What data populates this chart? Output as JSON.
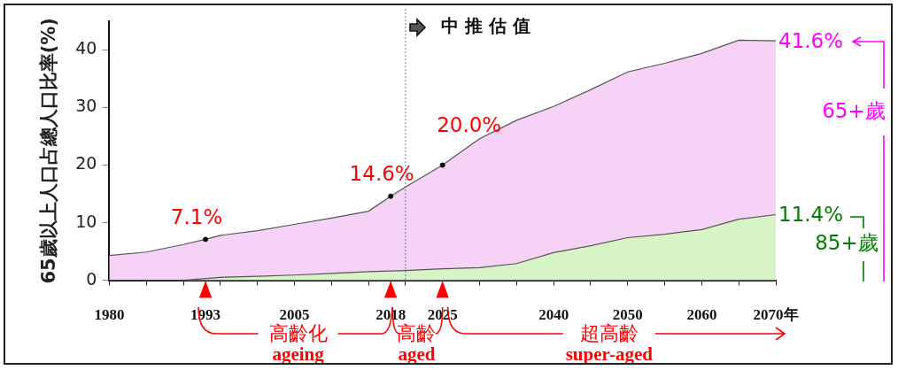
{
  "chart_data": {
    "type": "area",
    "ylabel": "65歲以上人口占總人口比率(%)",
    "xlim": [
      1980,
      2070
    ],
    "xticks": [
      1980,
      {
        "value": 1985,
        "label": null
      },
      {
        "value": 1990,
        "label": null
      },
      1993,
      {
        "value": 1995,
        "label": null
      },
      {
        "value": 2000,
        "label": null
      },
      2005,
      {
        "value": 2010,
        "label": null
      },
      {
        "value": 2015,
        "label": null
      },
      2018,
      {
        "value": 2020,
        "label": null
      },
      2025,
      {
        "value": 2030,
        "label": null
      },
      {
        "value": 2035,
        "label": null
      },
      2040,
      {
        "value": 2045,
        "label": null
      },
      2050,
      {
        "value": 2055,
        "label": null
      },
      2060,
      {
        "value": 2065,
        "label": null
      },
      {
        "value": 2070,
        "label": "2070年"
      }
    ],
    "ylim": [
      0,
      45
    ],
    "yticks": [
      0,
      10,
      20,
      30,
      40
    ],
    "grid": false,
    "legend": false,
    "series": [
      {
        "name": "65+歲",
        "color": "#f6d2f6",
        "x": [
          1980,
          1985,
          1990,
          1993,
          1995,
          2000,
          2005,
          2010,
          2015,
          2018,
          2020,
          2025,
          2030,
          2035,
          2040,
          2045,
          2050,
          2055,
          2060,
          2065,
          2070
        ],
        "values": [
          4.3,
          4.9,
          6.2,
          7.1,
          7.8,
          8.6,
          9.7,
          10.8,
          12.0,
          14.6,
          16.2,
          20.0,
          24.6,
          27.8,
          30.2,
          33.1,
          36.2,
          37.7,
          39.4,
          41.7,
          41.6
        ]
      },
      {
        "name": "85+歲",
        "color": "#d6f4c6",
        "x": [
          1990,
          1995,
          2000,
          2005,
          2010,
          2015,
          2020,
          2025,
          2030,
          2035,
          2040,
          2045,
          2050,
          2055,
          2060,
          2065,
          2070
        ],
        "values": [
          0,
          0.5,
          0.7,
          0.9,
          1.2,
          1.5,
          1.7,
          2.0,
          2.2,
          2.9,
          4.8,
          6.0,
          7.4,
          8.0,
          8.8,
          10.6,
          11.4
        ]
      },
      {
        "type": "scatter",
        "color": "#000000",
        "x": [
          1993,
          2018,
          2025
        ],
        "values": [
          7.1,
          14.6,
          20.0
        ]
      }
    ],
    "ref_lines": [
      {
        "axis": "x",
        "value": 2020,
        "label": "中推估值",
        "color": "#4a7fd4",
        "line_style": "dotted"
      }
    ],
    "annotations": [
      {
        "text": "7.1%",
        "x": 1993,
        "y": 7.1
      },
      {
        "text": "14.6%",
        "x": 2018,
        "y": 14.6
      },
      {
        "text": "20.0%",
        "x": 2025,
        "y": 20.0
      },
      {
        "text": "41.6%",
        "x": 2070,
        "y": 41.6
      },
      {
        "text": "11.4%",
        "x": 2070,
        "y": 11.4
      },
      "高齡化",
      "ageing",
      "高齡",
      "aged",
      "超高齡",
      "super-aged"
    ]
  }
}
